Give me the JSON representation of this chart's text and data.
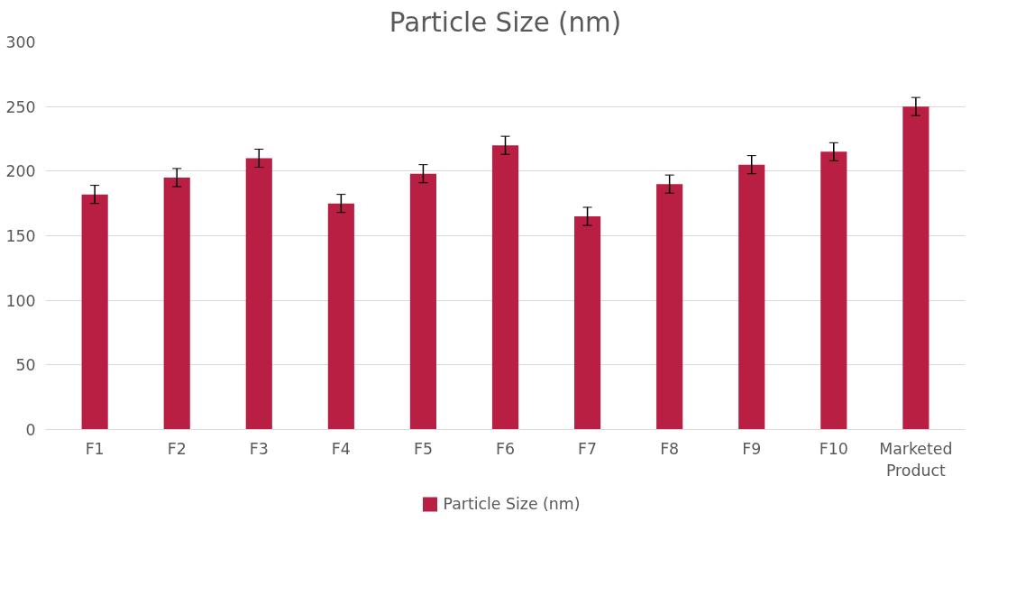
{
  "chart_data": {
    "type": "bar",
    "title": "Particle Size (nm)",
    "categories": [
      "F1",
      "F2",
      "F3",
      "F4",
      "F5",
      "F6",
      "F7",
      "F8",
      "F9",
      "F10",
      "Marketed Product"
    ],
    "series": [
      {
        "name": "Particle Size (nm)",
        "color": "#b81f43",
        "values": [
          182,
          195,
          210,
          175,
          198,
          220,
          165,
          190,
          205,
          215,
          250
        ],
        "errors": [
          7,
          7,
          7,
          7,
          7,
          7,
          7,
          7,
          7,
          7,
          7
        ]
      }
    ],
    "ylim": [
      0,
      300
    ],
    "yticks": [
      0,
      50,
      100,
      150,
      200,
      250,
      300
    ],
    "grid": "y",
    "legend": "bottom"
  }
}
